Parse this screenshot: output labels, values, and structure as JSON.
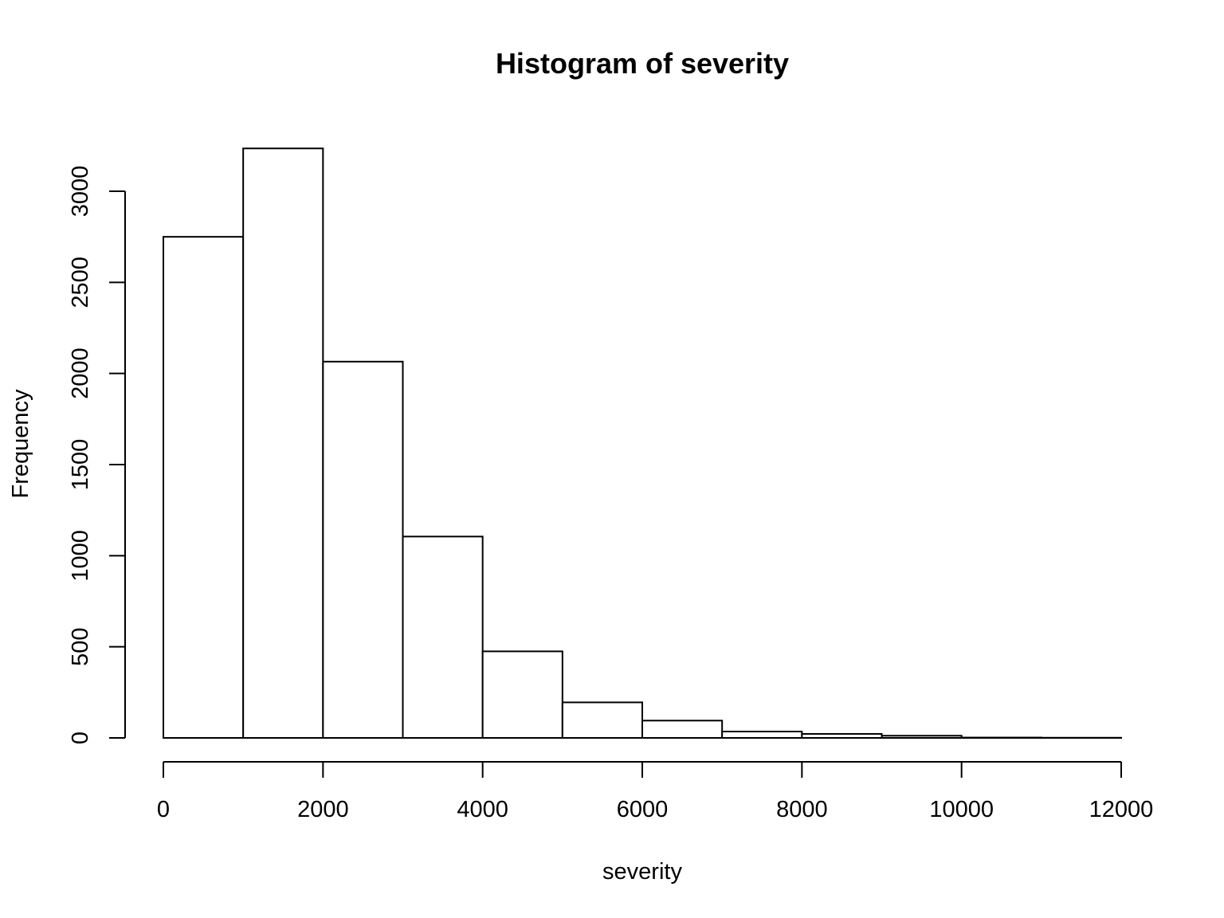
{
  "chart_data": {
    "type": "bar",
    "title": "Histogram of severity",
    "xlabel": "severity",
    "ylabel": "Frequency",
    "bins": [
      {
        "from": 0,
        "to": 1000,
        "count": 2750
      },
      {
        "from": 1000,
        "to": 2000,
        "count": 3235
      },
      {
        "from": 2000,
        "to": 3000,
        "count": 2065
      },
      {
        "from": 3000,
        "to": 4000,
        "count": 1105
      },
      {
        "from": 4000,
        "to": 5000,
        "count": 475
      },
      {
        "from": 5000,
        "to": 6000,
        "count": 195
      },
      {
        "from": 6000,
        "to": 7000,
        "count": 95
      },
      {
        "from": 7000,
        "to": 8000,
        "count": 35
      },
      {
        "from": 8000,
        "to": 9000,
        "count": 22
      },
      {
        "from": 9000,
        "to": 10000,
        "count": 12
      },
      {
        "from": 10000,
        "to": 11000,
        "count": 2
      },
      {
        "from": 11000,
        "to": 12000,
        "count": 1
      }
    ],
    "x_ticks": [
      0,
      2000,
      4000,
      6000,
      8000,
      10000,
      12000
    ],
    "x_tick_labels": [
      "0",
      "2000",
      "4000",
      "6000",
      "8000",
      "10000",
      "12000"
    ],
    "y_ticks": [
      0,
      500,
      1000,
      1500,
      2000,
      2500,
      3000
    ],
    "y_tick_labels": [
      "0",
      "500",
      "1000",
      "1500",
      "2000",
      "2500",
      "3000"
    ],
    "xlim": [
      0,
      12000
    ],
    "ylim": [
      0,
      3235
    ],
    "grid": false,
    "legend": "none",
    "colors": {
      "fill": "#ffffff",
      "stroke": "#000000"
    }
  }
}
